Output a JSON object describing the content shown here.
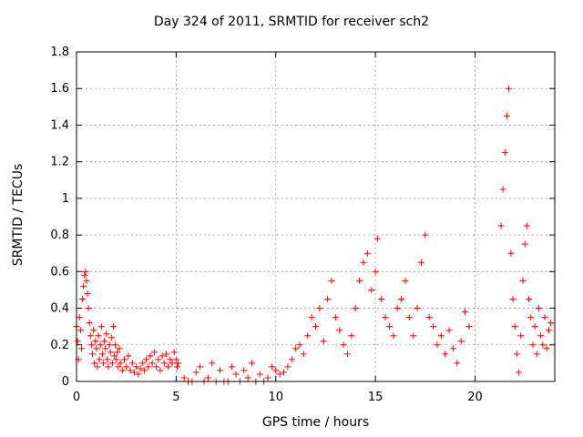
{
  "chart_data": {
    "type": "scatter",
    "title": "Day 324 of 2011, SRMTID for receiver sch2",
    "xlabel": "GPS time / hours",
    "ylabel": "SRMTID / TECUs",
    "xlim": [
      0,
      24
    ],
    "ylim": [
      0,
      1.8
    ],
    "x_ticks": [
      "0",
      "5",
      "10",
      "15",
      "20"
    ],
    "y_ticks": [
      "0",
      "0.2",
      "0.4",
      "0.6",
      "0.8",
      "1",
      "1.2",
      "1.4",
      "1.6",
      "1.8"
    ],
    "x_tick_values": [
      0,
      5,
      10,
      15,
      20
    ],
    "y_tick_values": [
      0,
      0.2,
      0.4,
      0.6,
      0.8,
      1.0,
      1.2,
      1.4,
      1.6,
      1.8
    ],
    "grid": true,
    "marker": "+",
    "color": "#ff0000",
    "series": [
      {
        "name": "SRMTID",
        "points": [
          [
            0.0,
            0.3
          ],
          [
            0.05,
            0.22
          ],
          [
            0.1,
            0.12
          ],
          [
            0.15,
            0.35
          ],
          [
            0.2,
            0.28
          ],
          [
            0.25,
            0.18
          ],
          [
            0.3,
            0.45
          ],
          [
            0.35,
            0.52
          ],
          [
            0.4,
            0.58
          ],
          [
            0.45,
            0.6
          ],
          [
            0.5,
            0.55
          ],
          [
            0.55,
            0.48
          ],
          [
            0.6,
            0.4
          ],
          [
            0.65,
            0.32
          ],
          [
            0.7,
            0.25
          ],
          [
            0.75,
            0.2
          ],
          [
            0.8,
            0.15
          ],
          [
            0.85,
            0.28
          ],
          [
            0.9,
            0.1
          ],
          [
            0.95,
            0.22
          ],
          [
            1.0,
            0.18
          ],
          [
            1.05,
            0.08
          ],
          [
            1.1,
            0.25
          ],
          [
            1.15,
            0.12
          ],
          [
            1.2,
            0.2
          ],
          [
            1.25,
            0.3
          ],
          [
            1.3,
            0.15
          ],
          [
            1.35,
            0.1
          ],
          [
            1.4,
            0.22
          ],
          [
            1.45,
            0.18
          ],
          [
            1.5,
            0.26
          ],
          [
            1.55,
            0.12
          ],
          [
            1.6,
            0.08
          ],
          [
            1.65,
            0.2
          ],
          [
            1.7,
            0.16
          ],
          [
            1.75,
            0.24
          ],
          [
            1.8,
            0.1
          ],
          [
            1.85,
            0.3
          ],
          [
            1.9,
            0.14
          ],
          [
            1.95,
            0.2
          ],
          [
            2.0,
            0.12
          ],
          [
            2.05,
            0.16
          ],
          [
            2.1,
            0.08
          ],
          [
            2.15,
            0.18
          ],
          [
            2.2,
            0.1
          ],
          [
            2.3,
            0.06
          ],
          [
            2.4,
            0.12
          ],
          [
            2.5,
            0.08
          ],
          [
            2.6,
            0.14
          ],
          [
            2.7,
            0.06
          ],
          [
            2.8,
            0.1
          ],
          [
            2.9,
            0.05
          ],
          [
            3.0,
            0.08
          ],
          [
            3.1,
            0.04
          ],
          [
            3.2,
            0.07
          ],
          [
            3.3,
            0.1
          ],
          [
            3.4,
            0.06
          ],
          [
            3.5,
            0.12
          ],
          [
            3.6,
            0.08
          ],
          [
            3.7,
            0.14
          ],
          [
            3.8,
            0.1
          ],
          [
            3.9,
            0.16
          ],
          [
            4.0,
            0.08
          ],
          [
            4.1,
            0.12
          ],
          [
            4.2,
            0.06
          ],
          [
            4.3,
            0.14
          ],
          [
            4.4,
            0.1
          ],
          [
            4.5,
            0.15
          ],
          [
            4.6,
            0.08
          ],
          [
            4.7,
            0.12
          ],
          [
            4.8,
            0.1
          ],
          [
            4.9,
            0.16
          ],
          [
            5.0,
            0.12
          ],
          [
            5.05,
            0.08
          ],
          [
            5.1,
            0.1
          ],
          [
            5.4,
            0.02
          ],
          [
            5.6,
            0.0
          ],
          [
            5.8,
            0.0
          ],
          [
            6.0,
            0.05
          ],
          [
            6.2,
            0.08
          ],
          [
            6.4,
            0.0
          ],
          [
            6.6,
            0.02
          ],
          [
            6.8,
            0.1
          ],
          [
            7.0,
            0.0
          ],
          [
            7.2,
            0.06
          ],
          [
            7.4,
            0.0
          ],
          [
            7.6,
            0.0
          ],
          [
            7.8,
            0.08
          ],
          [
            8.0,
            0.04
          ],
          [
            8.2,
            0.0
          ],
          [
            8.4,
            0.06
          ],
          [
            8.6,
            0.02
          ],
          [
            8.8,
            0.1
          ],
          [
            9.0,
            0.0
          ],
          [
            9.2,
            0.04
          ],
          [
            9.4,
            0.0
          ],
          [
            9.6,
            0.02
          ],
          [
            9.8,
            0.08
          ],
          [
            10.0,
            0.06
          ],
          [
            10.2,
            0.04
          ],
          [
            10.4,
            0.05
          ],
          [
            10.6,
            0.08
          ],
          [
            10.8,
            0.12
          ],
          [
            11.0,
            0.18
          ],
          [
            11.2,
            0.2
          ],
          [
            11.4,
            0.15
          ],
          [
            11.6,
            0.25
          ],
          [
            11.8,
            0.35
          ],
          [
            12.0,
            0.3
          ],
          [
            12.2,
            0.4
          ],
          [
            12.4,
            0.22
          ],
          [
            12.6,
            0.45
          ],
          [
            12.8,
            0.55
          ],
          [
            13.0,
            0.35
          ],
          [
            13.2,
            0.28
          ],
          [
            13.4,
            0.2
          ],
          [
            13.6,
            0.15
          ],
          [
            13.8,
            0.25
          ],
          [
            14.0,
            0.4
          ],
          [
            14.2,
            0.55
          ],
          [
            14.4,
            0.65
          ],
          [
            14.6,
            0.7
          ],
          [
            14.8,
            0.5
          ],
          [
            15.0,
            0.6
          ],
          [
            15.1,
            0.78
          ],
          [
            15.3,
            0.45
          ],
          [
            15.5,
            0.35
          ],
          [
            15.7,
            0.3
          ],
          [
            15.9,
            0.25
          ],
          [
            16.1,
            0.4
          ],
          [
            16.3,
            0.45
          ],
          [
            16.5,
            0.55
          ],
          [
            16.7,
            0.35
          ],
          [
            16.9,
            0.25
          ],
          [
            17.1,
            0.4
          ],
          [
            17.3,
            0.65
          ],
          [
            17.5,
            0.8
          ],
          [
            17.7,
            0.35
          ],
          [
            17.9,
            0.3
          ],
          [
            18.1,
            0.2
          ],
          [
            18.3,
            0.25
          ],
          [
            18.5,
            0.15
          ],
          [
            18.7,
            0.28
          ],
          [
            18.9,
            0.18
          ],
          [
            19.1,
            0.1
          ],
          [
            19.3,
            0.22
          ],
          [
            19.5,
            0.38
          ],
          [
            19.7,
            0.3
          ],
          [
            21.3,
            0.85
          ],
          [
            21.4,
            1.05
          ],
          [
            21.5,
            1.25
          ],
          [
            21.6,
            1.45
          ],
          [
            21.7,
            1.6
          ],
          [
            21.8,
            0.7
          ],
          [
            21.9,
            0.45
          ],
          [
            22.0,
            0.3
          ],
          [
            22.1,
            0.15
          ],
          [
            22.2,
            0.05
          ],
          [
            22.3,
            0.25
          ],
          [
            22.4,
            0.55
          ],
          [
            22.5,
            0.75
          ],
          [
            22.6,
            0.85
          ],
          [
            22.7,
            0.45
          ],
          [
            22.8,
            0.35
          ],
          [
            22.9,
            0.2
          ],
          [
            23.0,
            0.3
          ],
          [
            23.1,
            0.15
          ],
          [
            23.2,
            0.4
          ],
          [
            23.3,
            0.25
          ],
          [
            23.4,
            0.2
          ],
          [
            23.5,
            0.35
          ],
          [
            23.6,
            0.18
          ],
          [
            23.7,
            0.28
          ],
          [
            23.8,
            0.32
          ]
        ]
      }
    ]
  }
}
